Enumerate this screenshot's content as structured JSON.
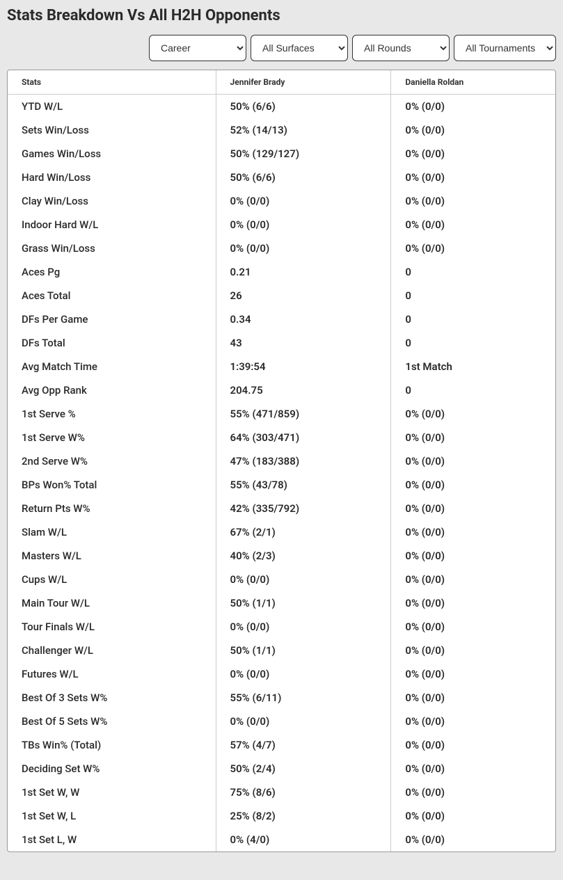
{
  "title": "Stats Breakdown Vs All H2H Opponents",
  "filters": {
    "period": {
      "selected": "Career",
      "options": [
        "Career"
      ]
    },
    "surface": {
      "selected": "All Surfaces",
      "options": [
        "All Surfaces"
      ]
    },
    "round": {
      "selected": "All Rounds",
      "options": [
        "All Rounds"
      ]
    },
    "tournament": {
      "selected": "All Tournaments",
      "options": [
        "All Tournaments"
      ]
    }
  },
  "table": {
    "columns": [
      "Stats",
      "Jennifer Brady",
      "Daniella Roldan"
    ],
    "rows": [
      [
        "YTD W/L",
        "50% (6/6)",
        "0% (0/0)"
      ],
      [
        "Sets Win/Loss",
        "52% (14/13)",
        "0% (0/0)"
      ],
      [
        "Games Win/Loss",
        "50% (129/127)",
        "0% (0/0)"
      ],
      [
        "Hard Win/Loss",
        "50% (6/6)",
        "0% (0/0)"
      ],
      [
        "Clay Win/Loss",
        "0% (0/0)",
        "0% (0/0)"
      ],
      [
        "Indoor Hard W/L",
        "0% (0/0)",
        "0% (0/0)"
      ],
      [
        "Grass Win/Loss",
        "0% (0/0)",
        "0% (0/0)"
      ],
      [
        "Aces Pg",
        "0.21",
        "0"
      ],
      [
        "Aces Total",
        "26",
        "0"
      ],
      [
        "DFs Per Game",
        "0.34",
        "0"
      ],
      [
        "DFs Total",
        "43",
        "0"
      ],
      [
        "Avg Match Time",
        "1:39:54",
        "1st Match"
      ],
      [
        "Avg Opp Rank",
        "204.75",
        "0"
      ],
      [
        "1st Serve %",
        "55% (471/859)",
        "0% (0/0)"
      ],
      [
        "1st Serve W%",
        "64% (303/471)",
        "0% (0/0)"
      ],
      [
        "2nd Serve W%",
        "47% (183/388)",
        "0% (0/0)"
      ],
      [
        "BPs Won% Total",
        "55% (43/78)",
        "0% (0/0)"
      ],
      [
        "Return Pts W%",
        "42% (335/792)",
        "0% (0/0)"
      ],
      [
        "Slam W/L",
        "67% (2/1)",
        "0% (0/0)"
      ],
      [
        "Masters W/L",
        "40% (2/3)",
        "0% (0/0)"
      ],
      [
        "Cups W/L",
        "0% (0/0)",
        "0% (0/0)"
      ],
      [
        "Main Tour W/L",
        "50% (1/1)",
        "0% (0/0)"
      ],
      [
        "Tour Finals W/L",
        "0% (0/0)",
        "0% (0/0)"
      ],
      [
        "Challenger W/L",
        "50% (1/1)",
        "0% (0/0)"
      ],
      [
        "Futures W/L",
        "0% (0/0)",
        "0% (0/0)"
      ],
      [
        "Best Of 3 Sets W%",
        "55% (6/11)",
        "0% (0/0)"
      ],
      [
        "Best Of 5 Sets W%",
        "0% (0/0)",
        "0% (0/0)"
      ],
      [
        "TBs Win% (Total)",
        "57% (4/7)",
        "0% (0/0)"
      ],
      [
        "Deciding Set W%",
        "50% (2/4)",
        "0% (0/0)"
      ],
      [
        "1st Set W, W",
        "75% (8/6)",
        "0% (0/0)"
      ],
      [
        "1st Set W, L",
        "25% (8/2)",
        "0% (0/0)"
      ],
      [
        "1st Set L, W",
        "0% (4/0)",
        "0% (0/0)"
      ]
    ]
  }
}
